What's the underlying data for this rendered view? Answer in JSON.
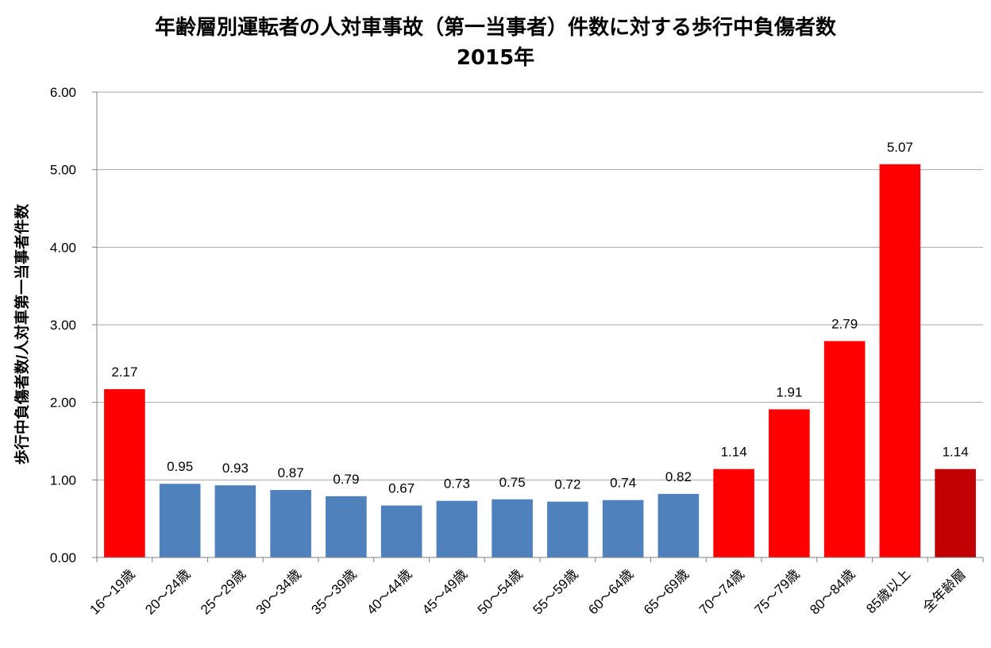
{
  "chart_data": {
    "type": "bar",
    "title": "年齢層別運転者の人対車事故（第一当事者）件数に対する歩行中負傷者数",
    "subtitle": "2015年",
    "ylabel": "歩行中負傷者数/人対車第一当事者件数",
    "xlabel": "",
    "ylim": [
      0,
      6
    ],
    "yticks": [
      "0.00",
      "1.00",
      "2.00",
      "3.00",
      "4.00",
      "5.00",
      "6.00"
    ],
    "grid": true,
    "categories": [
      "16～19歳",
      "20～24歳",
      "25～29歳",
      "30～34歳",
      "35～39歳",
      "40～44歳",
      "45～49歳",
      "50～54歳",
      "55～59歳",
      "60～64歳",
      "65～69歳",
      "70～74歳",
      "75～79歳",
      "80～84歳",
      "85歳以上",
      "全年齢層"
    ],
    "values": [
      2.17,
      0.95,
      0.93,
      0.87,
      0.79,
      0.67,
      0.73,
      0.75,
      0.72,
      0.74,
      0.82,
      1.14,
      1.91,
      2.79,
      5.07,
      1.14
    ],
    "value_labels": [
      "2.17",
      "0.95",
      "0.93",
      "0.87",
      "0.79",
      "0.67",
      "0.73",
      "0.75",
      "0.72",
      "0.74",
      "0.82",
      "1.14",
      "1.91",
      "2.79",
      "5.07",
      "1.14"
    ],
    "bar_colors": [
      "#ff0000",
      "#4f81bd",
      "#4f81bd",
      "#4f81bd",
      "#4f81bd",
      "#4f81bd",
      "#4f81bd",
      "#4f81bd",
      "#4f81bd",
      "#4f81bd",
      "#4f81bd",
      "#ff0000",
      "#ff0000",
      "#ff0000",
      "#ff0000",
      "#c00000"
    ]
  }
}
